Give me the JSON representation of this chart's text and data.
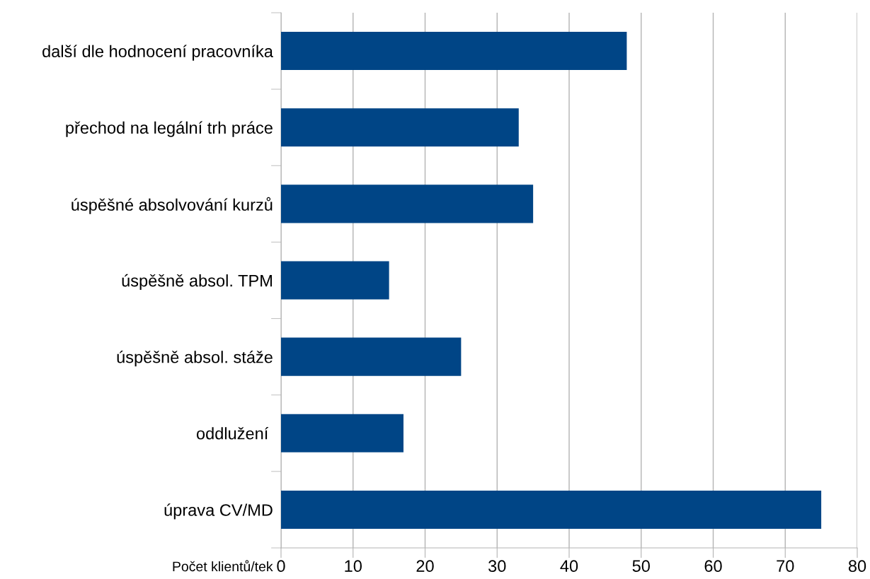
{
  "chart_data": {
    "type": "bar",
    "orientation": "horizontal",
    "xlabel": "Počet klientů/tek",
    "categories": [
      "další dle hodnocení pracovníka",
      "přechod na legální trh práce",
      "úspěšné absolvování kurzů",
      "úspěšně absol. TPM",
      "úspěšně absol. stáže",
      "oddlužení ",
      "úprava CV/MD"
    ],
    "values": [
      48,
      33,
      35,
      15,
      25,
      17,
      75
    ],
    "color": "#004586",
    "xlim": [
      0,
      80
    ],
    "xticks": [
      0,
      10,
      20,
      30,
      40,
      50,
      60,
      70,
      80
    ],
    "grid": "x",
    "legend": false
  }
}
